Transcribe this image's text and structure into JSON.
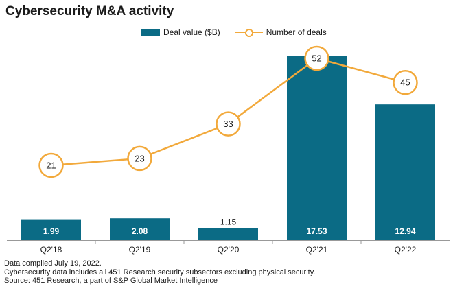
{
  "chart_data": {
    "type": "bar",
    "title": "Cybersecurity M&A activity",
    "categories": [
      "Q2'18",
      "Q2'19",
      "Q2'20",
      "Q2'21",
      "Q2'22"
    ],
    "series": [
      {
        "name": "Deal value ($B)",
        "kind": "bar",
        "values": [
          1.99,
          2.08,
          1.15,
          17.53,
          12.94
        ],
        "labels": [
          "1.99",
          "2.08",
          "1.15",
          "17.53",
          "12.94"
        ]
      },
      {
        "name": "Number of deals",
        "kind": "line",
        "values": [
          21,
          23,
          33,
          52,
          45
        ],
        "labels": [
          "21",
          "23",
          "33",
          "52",
          "45"
        ]
      }
    ],
    "bar_ylim": [
      0,
      19
    ],
    "line_ylim": [
      0,
      60
    ],
    "colors": {
      "bar": "#0b6b85",
      "line": "#f2a93b",
      "axis": "#999999"
    }
  },
  "legend": {
    "bar_label": "Deal value ($B)",
    "line_label": "Number of deals"
  },
  "footnotes": [
    "Data compiled July 19, 2022.",
    "Cybersecurity data includes all 451 Research security subsectors excluding physical security.",
    "Source: 451 Research, a part of S&P Global Market Intelligence"
  ]
}
